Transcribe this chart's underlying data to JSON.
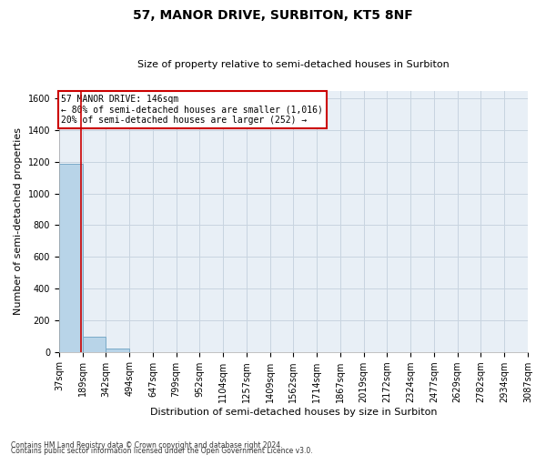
{
  "title": "57, MANOR DRIVE, SURBITON, KT5 8NF",
  "subtitle": "Size of property relative to semi-detached houses in Surbiton",
  "xlabel": "Distribution of semi-detached houses by size in Surbiton",
  "ylabel": "Number of semi-detached properties",
  "footnote1": "Contains HM Land Registry data © Crown copyright and database right 2024.",
  "footnote2": "Contains public sector information licensed under the Open Government Licence v3.0.",
  "property_size_bin": 1,
  "annotation_line1": "57 MANOR DRIVE: 146sqm",
  "annotation_line2": "← 80% of semi-detached houses are smaller (1,016)",
  "annotation_line3": "20% of semi-detached houses are larger (252) →",
  "bar_color": "#b8d4e8",
  "bar_edge_color": "#7aaac8",
  "vline_color": "#cc0000",
  "annotation_box_color": "#cc0000",
  "grid_color": "#c8d4e0",
  "background_color": "#e8eff6",
  "ylim": [
    0,
    1650
  ],
  "yticks": [
    0,
    200,
    400,
    600,
    800,
    1000,
    1200,
    1400,
    1600
  ],
  "bin_labels": [
    "37sqm",
    "189sqm",
    "342sqm",
    "494sqm",
    "647sqm",
    "799sqm",
    "952sqm",
    "1104sqm",
    "1257sqm",
    "1409sqm",
    "1562sqm",
    "1714sqm",
    "1867sqm",
    "2019sqm",
    "2172sqm",
    "2324sqm",
    "2477sqm",
    "2629sqm",
    "2782sqm",
    "2934sqm",
    "3087sqm"
  ],
  "bar_heights": [
    1185,
    95,
    22,
    0,
    0,
    0,
    0,
    0,
    0,
    0,
    0,
    0,
    0,
    0,
    0,
    0,
    0,
    0,
    0,
    0
  ],
  "n_bars": 20,
  "vline_x": 0.93,
  "title_fontsize": 10,
  "subtitle_fontsize": 8,
  "ylabel_fontsize": 8,
  "xlabel_fontsize": 8,
  "tick_fontsize": 7,
  "annot_fontsize": 7,
  "footnote_fontsize": 5.5
}
